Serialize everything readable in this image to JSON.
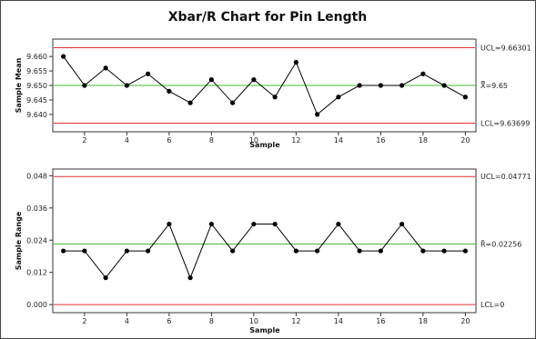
{
  "title": "Xbar/R Chart for Pin Length",
  "chart_data": [
    {
      "type": "line",
      "id": "xbar",
      "ylabel": "Sample Mean",
      "xlabel": "Sample",
      "x": [
        1,
        2,
        3,
        4,
        5,
        6,
        7,
        8,
        9,
        10,
        11,
        12,
        13,
        14,
        15,
        16,
        17,
        18,
        19,
        20
      ],
      "values": [
        9.66,
        9.65,
        9.656,
        9.65,
        9.654,
        9.648,
        9.644,
        9.652,
        9.644,
        9.652,
        9.646,
        9.658,
        9.64,
        9.646,
        9.65,
        9.65,
        9.65,
        9.654,
        9.65,
        9.646
      ],
      "ylim": [
        9.634,
        9.666
      ],
      "xlim": [
        0.5,
        20.5
      ],
      "yticks": [
        9.64,
        9.645,
        9.65,
        9.655,
        9.66
      ],
      "ytick_labels": [
        "9.640",
        "9.645",
        "9.650",
        "9.655",
        "9.660"
      ],
      "xticks": [
        2,
        4,
        6,
        8,
        10,
        12,
        14,
        16,
        18,
        20
      ],
      "xtick_labels": [
        "2",
        "4",
        "6",
        "8",
        "10",
        "12",
        "14",
        "16",
        "18",
        "20"
      ],
      "ucl": 9.66301,
      "center": 9.65,
      "lcl": 9.63699,
      "ucl_label": "UCL=9.66301",
      "center_label": "X̿=9.65",
      "lcl_label": "LCL=9.63699",
      "line_color": "#000000",
      "limit_color": "#e03030",
      "center_color": "#44bb33"
    },
    {
      "type": "line",
      "id": "range",
      "ylabel": "Sample Range",
      "xlabel": "Sample",
      "x": [
        1,
        2,
        3,
        4,
        5,
        6,
        7,
        8,
        9,
        10,
        11,
        12,
        13,
        14,
        15,
        16,
        17,
        18,
        19,
        20
      ],
      "values": [
        0.02,
        0.02,
        0.01,
        0.02,
        0.02,
        0.03,
        0.01,
        0.03,
        0.02,
        0.03,
        0.03,
        0.02,
        0.02,
        0.03,
        0.02,
        0.02,
        0.03,
        0.02,
        0.02,
        0.02
      ],
      "ylim": [
        -0.003,
        0.0505
      ],
      "xlim": [
        0.5,
        20.5
      ],
      "yticks": [
        0.0,
        0.012,
        0.024,
        0.036,
        0.048
      ],
      "ytick_labels": [
        "0.000",
        "0.012",
        "0.024",
        "0.036",
        "0.048"
      ],
      "xticks": [
        2,
        4,
        6,
        8,
        10,
        12,
        14,
        16,
        18,
        20
      ],
      "xtick_labels": [
        "2",
        "4",
        "6",
        "8",
        "10",
        "12",
        "14",
        "16",
        "18",
        "20"
      ],
      "ucl": 0.04771,
      "center": 0.02256,
      "lcl": 0,
      "ucl_label": "UCL=0.04771",
      "center_label": "R̄=0.02256",
      "lcl_label": "LCL=0",
      "line_color": "#000000",
      "limit_color": "#e03030",
      "center_color": "#44bb33"
    }
  ]
}
